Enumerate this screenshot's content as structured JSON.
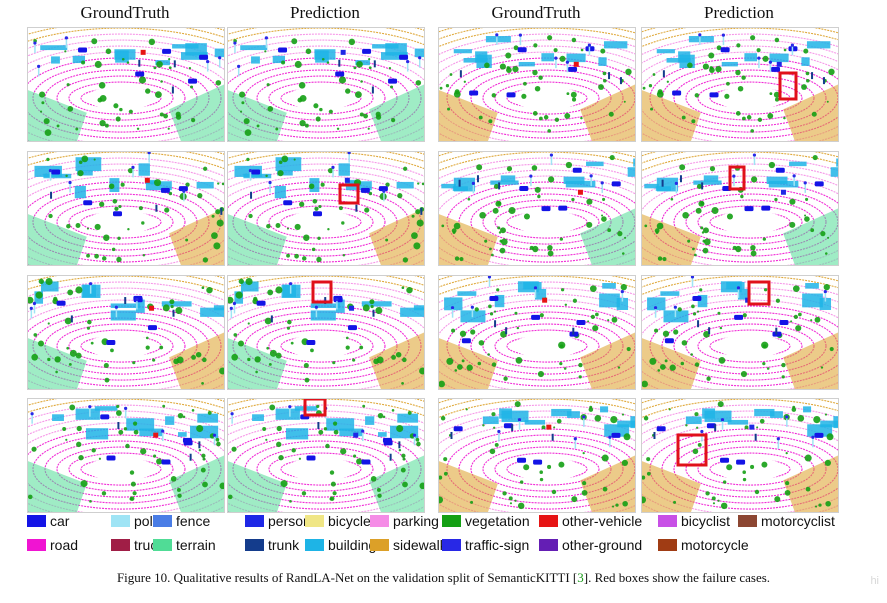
{
  "headers": [
    "GroundTruth",
    "Prediction",
    "GroundTruth",
    "Prediction"
  ],
  "legend": [
    {
      "label": "car",
      "color": "#1414e6"
    },
    {
      "label": "pole",
      "color": "#9fe4f5"
    },
    {
      "label": "fence",
      "color": "#4a7de6"
    },
    {
      "label": "person",
      "color": "#1e28e6"
    },
    {
      "label": "bicycle",
      "color": "#f0e685"
    },
    {
      "label": "parking",
      "color": "#f58ce6"
    },
    {
      "label": "vegetation",
      "color": "#14a014"
    },
    {
      "label": "other-vehicle",
      "color": "#e61414"
    },
    {
      "label": "bicyclist",
      "color": "#c850e6"
    },
    {
      "label": "motorcyclist",
      "color": "#8c4632"
    },
    {
      "label": "road",
      "color": "#f014d2"
    },
    {
      "label": "truck",
      "color": "#a01e46"
    },
    {
      "label": "terrain",
      "color": "#50dc96"
    },
    {
      "label": "trunk",
      "color": "#143c8c"
    },
    {
      "label": "building",
      "color": "#1eb4e6"
    },
    {
      "label": "sidewalk",
      "color": "#dca028"
    },
    {
      "label": "traffic-sign",
      "color": "#2828e6"
    },
    {
      "label": "other-ground",
      "color": "#641eb4"
    },
    {
      "label": "motorcycle",
      "color": "#a03c14"
    }
  ],
  "caption": {
    "before": "Figure 10. Qualitative results of RandLA-Net on the validation split of SemanticKITTI [",
    "ref": "3",
    "after": "]. Red boxes show the failure cases."
  },
  "watermark": "hi"
}
